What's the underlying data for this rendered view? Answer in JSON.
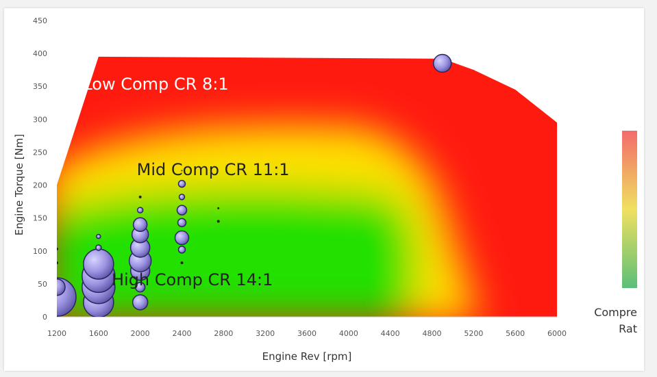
{
  "chart_data": {
    "type": "heatmap",
    "title": "",
    "xlabel": "Engine Rev [rpm]",
    "ylabel": "Engine Torque [Nm]",
    "xlim": [
      1200,
      6000
    ],
    "ylim": [
      0,
      450
    ],
    "xticks": [
      1200,
      1600,
      2000,
      2400,
      2800,
      3200,
      3600,
      4000,
      4400,
      4800,
      5200,
      5600,
      6000
    ],
    "yticks": [
      0,
      50,
      100,
      150,
      200,
      250,
      300,
      350,
      400,
      450
    ],
    "envelope": [
      [
        1200,
        200
      ],
      [
        1600,
        395
      ],
      [
        4900,
        392
      ],
      [
        5200,
        375
      ],
      [
        5600,
        345
      ],
      [
        6000,
        295
      ]
    ],
    "zones": [
      {
        "label": "Low Comp CR 8:1",
        "rpm": 2150,
        "torque": 345,
        "color": "#ffffff"
      },
      {
        "label": "Mid Comp CR 11:1",
        "rpm": 2700,
        "torque": 215,
        "color": "#222222"
      },
      {
        "label": "High Comp CR 14:1",
        "rpm": 2500,
        "torque": 48,
        "color": "#222222"
      }
    ],
    "bubbles": [
      {
        "rpm": 1200,
        "torque": 30,
        "size": 28
      },
      {
        "rpm": 1200,
        "torque": 45,
        "size": 12
      },
      {
        "rpm": 1200,
        "torque": 82,
        "size": 2
      },
      {
        "rpm": 1200,
        "torque": 103,
        "size": 2
      },
      {
        "rpm": 1600,
        "torque": 22,
        "size": 22
      },
      {
        "rpm": 1600,
        "torque": 45,
        "size": 24
      },
      {
        "rpm": 1600,
        "torque": 62,
        "size": 24
      },
      {
        "rpm": 1600,
        "torque": 80,
        "size": 22
      },
      {
        "rpm": 1600,
        "torque": 105,
        "size": 4
      },
      {
        "rpm": 1600,
        "torque": 122,
        "size": 3
      },
      {
        "rpm": 2000,
        "torque": 22,
        "size": 11
      },
      {
        "rpm": 2000,
        "torque": 45,
        "size": 7
      },
      {
        "rpm": 2000,
        "torque": 70,
        "size": 14
      },
      {
        "rpm": 2000,
        "torque": 85,
        "size": 16
      },
      {
        "rpm": 2000,
        "torque": 105,
        "size": 14
      },
      {
        "rpm": 2000,
        "torque": 125,
        "size": 12
      },
      {
        "rpm": 2000,
        "torque": 140,
        "size": 10
      },
      {
        "rpm": 2000,
        "torque": 162,
        "size": 4
      },
      {
        "rpm": 2000,
        "torque": 182,
        "size": 2
      },
      {
        "rpm": 2400,
        "torque": 82,
        "size": 2
      },
      {
        "rpm": 2400,
        "torque": 102,
        "size": 5
      },
      {
        "rpm": 2400,
        "torque": 120,
        "size": 10
      },
      {
        "rpm": 2400,
        "torque": 143,
        "size": 6
      },
      {
        "rpm": 2400,
        "torque": 162,
        "size": 7
      },
      {
        "rpm": 2400,
        "torque": 182,
        "size": 4
      },
      {
        "rpm": 2400,
        "torque": 202,
        "size": 5
      },
      {
        "rpm": 2400,
        "torque": 222,
        "size": 1
      },
      {
        "rpm": 2750,
        "torque": 145,
        "size": 2
      },
      {
        "rpm": 2750,
        "torque": 165,
        "size": 1.5
      },
      {
        "rpm": 4900,
        "torque": 385,
        "size": 13
      }
    ],
    "colorbar": {
      "label_line1": "Compre",
      "label_line2": "Rat",
      "colors": [
        "#f26b6b",
        "#f0e060",
        "#5bbf78"
      ]
    }
  }
}
